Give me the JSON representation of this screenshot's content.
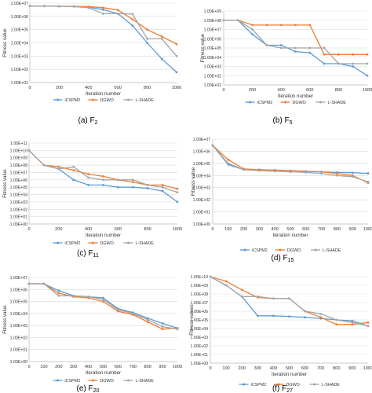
{
  "figure": {
    "series_colors": [
      "#5B9BD5",
      "#ED7D31",
      "#A5A5A5"
    ]
  },
  "chart_data": [
    {
      "type": "line",
      "panel": "(a)",
      "caption": "(a) F2",
      "caption_text": "(a) F",
      "caption_sub": "2",
      "ylabel": "Fitness value",
      "xlabel": "Iteration number",
      "xlim": [
        0,
        1000
      ],
      "x_ticks": [
        "0",
        "200",
        "400",
        "600",
        "800",
        "1000"
      ],
      "ylim_log10": [
        1,
        7
      ],
      "y_ticks": [
        "1.00E+01",
        "1.00E+02",
        "1.00E+03",
        "1.00E+04",
        "1.00E+05",
        "1.00E+06",
        "1.00E+07"
      ],
      "log_scale_y": true,
      "grid": true,
      "legend": "bottom",
      "x": [
        0,
        100,
        200,
        300,
        400,
        500,
        600,
        700,
        800,
        900,
        1000
      ],
      "series": [
        {
          "name": "iCSPM2",
          "values": [
            6000000,
            6000000,
            5800000,
            5600000,
            5000000,
            3200000,
            1600000,
            200000,
            10000,
            600,
            60
          ]
        },
        {
          "name": "DGWO",
          "values": [
            6000000,
            6000000,
            5900000,
            5700000,
            5500000,
            4500000,
            3000000,
            600000,
            100000,
            30000,
            8000
          ]
        },
        {
          "name": "L-SHADE",
          "values": [
            6000000,
            6000000,
            5800000,
            5500000,
            4500000,
            1600000,
            1600000,
            1500000,
            20000,
            20000,
            1000
          ]
        }
      ]
    },
    {
      "type": "line",
      "panel": "(b)",
      "caption": "(b) F5",
      "caption_text": "(b) F",
      "caption_sub": "5",
      "ylabel": "Fitness value",
      "xlabel": "Iteration number",
      "xlim": [
        0,
        1000
      ],
      "x_ticks": [
        "0",
        "200",
        "400",
        "600",
        "800",
        "1000"
      ],
      "ylim_log10": [
        1,
        9
      ],
      "y_ticks": [
        "1.00E+01",
        "1.00E+02",
        "1.00E+03",
        "1.00E+04",
        "1.00E+05",
        "1.00E+06",
        "1.00E+07",
        "1.00E+08",
        "1.00E+09"
      ],
      "log_scale_y": true,
      "grid": true,
      "legend": "bottom",
      "x": [
        0,
        100,
        200,
        300,
        400,
        500,
        600,
        700,
        800,
        900,
        1000
      ],
      "series": [
        {
          "name": "iCSPM2",
          "values": [
            100000000,
            100000000,
            3000000,
            200000,
            200000,
            40000,
            30000,
            2000,
            2000,
            1000,
            100
          ]
        },
        {
          "name": "DGWO",
          "values": [
            100000000,
            100000000,
            30000000,
            30000000,
            30000000,
            30000000,
            30000000,
            20000,
            20000,
            20000,
            20000
          ]
        },
        {
          "name": "L-SHADE",
          "values": [
            100000000,
            100000000,
            10000000,
            200000,
            100000,
            100000,
            100000,
            100000,
            2000,
            2000,
            2000
          ]
        }
      ]
    },
    {
      "type": "line",
      "panel": "(c)",
      "caption": "(c) F11",
      "caption_text": "(c) F",
      "caption_sub": "11",
      "ylabel": "Fitness value",
      "xlabel": "Iteration number",
      "xlim": [
        0,
        1000
      ],
      "x_ticks": [
        "0",
        "200",
        "400",
        "600",
        "800",
        "1000"
      ],
      "ylim_log10": [
        0,
        11
      ],
      "y_ticks": [
        "1.00E+00",
        "1.00E+01",
        "1.00E+02",
        "1.00E+03",
        "1.00E+04",
        "1.00E+05",
        "1.00E+06",
        "1.00E+07",
        "1.00E+08",
        "1.00E+09",
        "1.00E+10",
        "1.00E+11"
      ],
      "log_scale_y": true,
      "grid": true,
      "legend": "bottom",
      "x": [
        0,
        100,
        200,
        300,
        400,
        500,
        600,
        700,
        800,
        900,
        1000
      ],
      "series": [
        {
          "name": "iCSPM2",
          "values": [
            10000000000,
            100000000,
            30000000,
            1000000,
            200000,
            200000,
            100000,
            100000,
            70000,
            30000,
            1000
          ]
        },
        {
          "name": "DGWO",
          "values": [
            10000000000,
            100000000,
            60000000,
            20000000,
            6000000,
            3000000,
            1000000,
            500000,
            200000,
            200000,
            60000
          ]
        },
        {
          "name": "L-SHADE",
          "values": [
            10000000000,
            100000000,
            30000000,
            60000000,
            2000000,
            1000000,
            1000000,
            1000000,
            200000,
            100000,
            20000
          ]
        }
      ]
    },
    {
      "type": "line",
      "panel": "(d)",
      "caption": "(d) F15",
      "caption_text": "(d) F",
      "caption_sub": "15",
      "ylabel": "Fitness value",
      "xlabel": "Iteration number",
      "xlim": [
        0,
        1000
      ],
      "x_ticks": [
        "0",
        "100",
        "200",
        "300",
        "400",
        "500",
        "600",
        "700",
        "800",
        "900",
        "1000"
      ],
      "ylim_log10": [
        0,
        7
      ],
      "y_ticks": [
        "1.00E+00",
        "1.00E+01",
        "1.00E+02",
        "1.00E+03",
        "1.00E+04",
        "1.00E+05",
        "1.00E+06",
        "1.00E+07"
      ],
      "log_scale_y": true,
      "grid": true,
      "legend": "bottom",
      "x": [
        0,
        100,
        200,
        300,
        400,
        500,
        600,
        700,
        800,
        900,
        1000
      ],
      "series": [
        {
          "name": "iCSPM2",
          "values": [
            3000000,
            80000,
            30000,
            30000,
            28000,
            25000,
            22000,
            20000,
            18000,
            17000,
            15000
          ]
        },
        {
          "name": "DGWO",
          "values": [
            3000000,
            200000,
            35000,
            30000,
            28000,
            25000,
            22000,
            20000,
            15000,
            10000,
            2500
          ]
        },
        {
          "name": "L-SHADE",
          "values": [
            3000000,
            100000,
            30000,
            25000,
            22000,
            20000,
            18000,
            15000,
            10000,
            8000,
            3000
          ]
        }
      ]
    },
    {
      "type": "line",
      "panel": "(e)",
      "caption": "(e) F20",
      "caption_text": "(e) F",
      "caption_sub": "20",
      "ylabel": "Fitness value",
      "xlabel": "Iteration number",
      "xlim": [
        0,
        1000
      ],
      "x_ticks": [
        "0",
        "100",
        "200",
        "300",
        "400",
        "500",
        "600",
        "700",
        "800",
        "900",
        "1000"
      ],
      "ylim_log10": [
        0,
        7
      ],
      "y_ticks": [
        "1.00E+00",
        "1.00E+01",
        "1.00E+02",
        "1.00E+03",
        "1.00E+04",
        "1.00E+05",
        "1.00E+06",
        "1.00E+07"
      ],
      "log_scale_y": true,
      "grid": true,
      "legend": "bottom",
      "x": [
        0,
        100,
        200,
        300,
        400,
        500,
        600,
        700,
        800,
        900,
        1000
      ],
      "series": [
        {
          "name": "iCSPM2",
          "values": [
            3000000,
            3000000,
            800000,
            300000,
            250000,
            200000,
            25000,
            12000,
            4000,
            1500,
            600
          ]
        },
        {
          "name": "DGWO",
          "values": [
            3000000,
            3000000,
            500000,
            250000,
            200000,
            100000,
            15000,
            8000,
            2000,
            500,
            600
          ]
        },
        {
          "name": "L-SHADE",
          "values": [
            3000000,
            3000000,
            300000,
            300000,
            250000,
            150000,
            20000,
            10000,
            3000,
            800,
            500
          ]
        }
      ]
    },
    {
      "type": "line",
      "panel": "(f)",
      "caption": "(f) F27",
      "caption_text": "(f) F",
      "caption_sub": "27",
      "ylabel": "Fitness values",
      "xlabel": "Iteration number",
      "xlim": [
        0,
        1000
      ],
      "x_ticks": [
        "0",
        "100",
        "200",
        "300",
        "400",
        "500",
        "600",
        "700",
        "800",
        "900",
        "1000"
      ],
      "ylim_log10": [
        0,
        10
      ],
      "y_ticks": [
        "1.00E+00",
        "1.00E+01",
        "1.00E+02",
        "1.00E+03",
        "1.00E+04",
        "1.00E+05",
        "1.00E+06",
        "1.00E+07",
        "1.00E+08",
        "1.00E+09",
        "1.00E+10"
      ],
      "log_scale_y": true,
      "grid": true,
      "legend": "bottom",
      "x": [
        0,
        100,
        200,
        300,
        400,
        500,
        600,
        700,
        800,
        900,
        1000
      ],
      "series": [
        {
          "name": "iCSPM2",
          "values": [
            10000000000,
            1000000000,
            50000000,
            300000,
            300000,
            250000,
            200000,
            150000,
            100000,
            80000,
            20000
          ]
        },
        {
          "name": "DGWO",
          "values": [
            10000000000,
            3000000000,
            300000000,
            40000000,
            30000000,
            30000000,
            1000000,
            200000,
            30000,
            30000,
            50000
          ]
        },
        {
          "name": "L-SHADE",
          "values": [
            10000000000,
            1000000000,
            50000000,
            50000000,
            30000000,
            30000000,
            1000000,
            500000,
            100000,
            50000,
            20000
          ]
        }
      ]
    }
  ]
}
